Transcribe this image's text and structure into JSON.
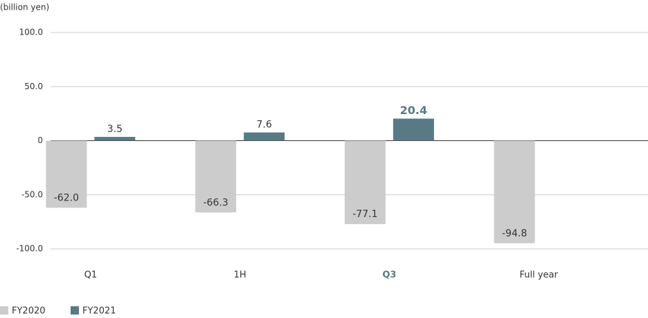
{
  "chart_data": {
    "type": "bar",
    "y_label": "(billion yen)",
    "categories": [
      "Q1",
      "1H",
      "Q3",
      "Full year"
    ],
    "series": [
      {
        "name": "FY2020",
        "color": "#cccccc",
        "values": [
          -62.0,
          -66.3,
          -77.1,
          -94.8
        ],
        "value_labels": [
          "-62.0",
          "-66.3",
          "-77.1",
          "-94.8"
        ]
      },
      {
        "name": "FY2021",
        "color": "#587a84",
        "values": [
          3.5,
          7.6,
          20.4,
          null
        ]
      }
    ],
    "ylim": [
      -100,
      100
    ],
    "yticks": [
      {
        "value": 100,
        "label": "100.0"
      },
      {
        "value": 50,
        "label": "50.0"
      },
      0,
      {
        "value": -50,
        "label": "-50.0"
      },
      {
        "value": -100,
        "label": "-100.0"
      }
    ],
    "grid": true,
    "highlight_category": 2,
    "legend": "bottom-left"
  }
}
